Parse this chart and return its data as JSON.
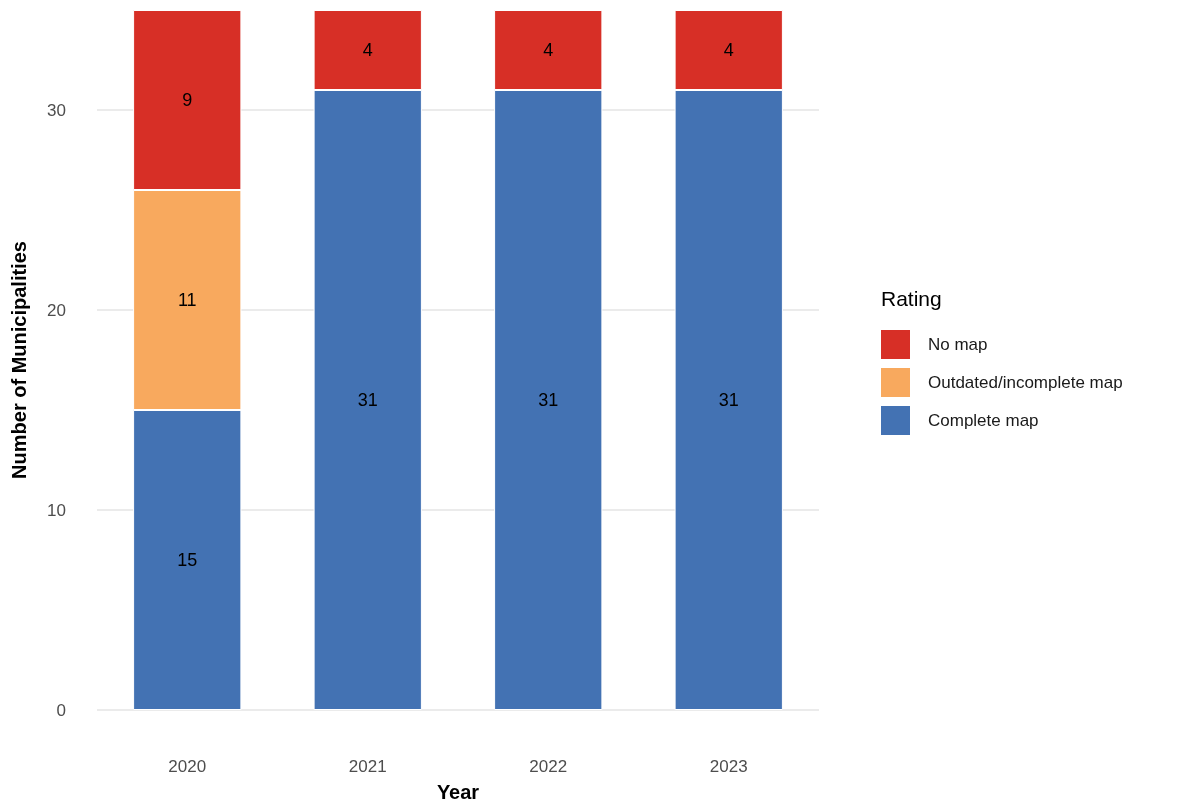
{
  "chart_data": {
    "type": "bar",
    "stacked": true,
    "xlabel": "Year",
    "ylabel": "Number of Municipalities",
    "legend_title": "Rating",
    "categories": [
      "2020",
      "2021",
      "2022",
      "2023"
    ],
    "series": [
      {
        "name": "Complete map",
        "color": "#4372b3",
        "values": [
          15,
          31,
          31,
          31
        ]
      },
      {
        "name": "Outdated/incomplete map",
        "color": "#f8a95e",
        "values": [
          11,
          null,
          null,
          null
        ]
      },
      {
        "name": "No map",
        "color": "#d72f26",
        "values": [
          9,
          4,
          4,
          4
        ]
      }
    ],
    "ylim": [
      0,
      35
    ],
    "yticks": [
      0,
      10,
      20,
      30
    ],
    "grid": "y",
    "legend": "right",
    "data_labels": true
  }
}
